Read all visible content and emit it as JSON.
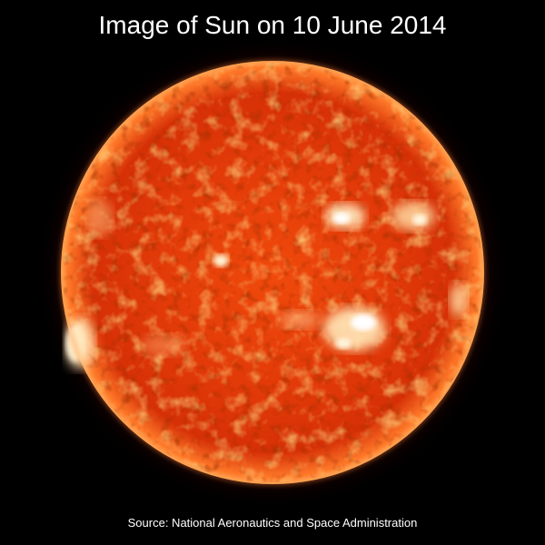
{
  "title": "Image of Sun on 10 June 2014",
  "source": "Source: National Aeronautics and Space Administration",
  "colors": {
    "background": "#000000",
    "text": "#ffffff",
    "sun_core": "#ff6a1a",
    "sun_mid": "#e6330a",
    "sun_edge": "#b01400",
    "corona": "#7a0a00",
    "active_region": "#fff2d0"
  }
}
